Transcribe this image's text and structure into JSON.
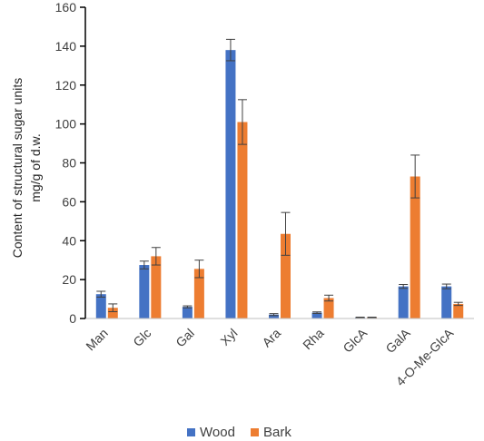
{
  "chart_data": {
    "type": "bar",
    "ylabel_line1": "Content of structural sugar units",
    "ylabel_line2": "mg/g of d.w.",
    "xlabel": "",
    "ylim": [
      0,
      160
    ],
    "yticks": [
      0,
      20,
      40,
      60,
      80,
      100,
      120,
      140,
      160
    ],
    "grid": false,
    "legend_position": "bottom",
    "categories": [
      "Man",
      "Glc",
      "Gal",
      "Xyl",
      "Ara",
      "Rha",
      "GlcA",
      "GalA",
      "4-O-Me-GlcA"
    ],
    "series": [
      {
        "name": "Wood",
        "color": "#4472C4",
        "values": [
          12.5,
          27.5,
          6,
          138,
          2,
          3,
          0.5,
          16.5,
          16.5
        ],
        "errors": [
          1.5,
          2,
          0.5,
          5.5,
          0.5,
          0.4,
          0.2,
          1,
          1.2
        ]
      },
      {
        "name": "Bark",
        "color": "#ED7D31",
        "values": [
          5.5,
          32,
          25.5,
          101,
          43.5,
          10.5,
          0.5,
          73,
          7.5
        ],
        "errors": [
          2,
          4.5,
          4.5,
          11.5,
          11,
          1.5,
          0.2,
          11,
          0.8
        ]
      }
    ]
  }
}
